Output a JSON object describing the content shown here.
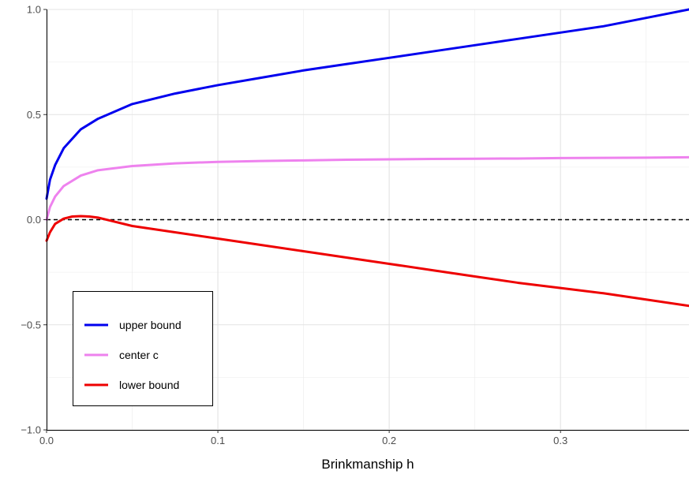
{
  "chart_data": {
    "type": "line",
    "title": "",
    "xlabel": "Brinkmanship h",
    "ylabel": "",
    "xlim": [
      0,
      0.375
    ],
    "ylim": [
      -1.0,
      1.0
    ],
    "x_ticks": [
      0.0,
      0.1,
      0.2,
      0.3
    ],
    "x_tick_labels": [
      "0.0",
      "0.1",
      "0.2",
      "0.3"
    ],
    "y_ticks": [
      -1.0,
      -0.5,
      0.0,
      0.5,
      1.0
    ],
    "y_tick_labels": [
      "−1.0",
      "−0.5",
      "0.0",
      "0.5",
      "1.0"
    ],
    "grid": true,
    "legend_position": "bottom-left",
    "reference_line": {
      "y": 0.0,
      "style": "dashed",
      "color": "#000000"
    },
    "series": [
      {
        "name": "upper bound",
        "color": "#0000ee",
        "x": [
          0.0,
          0.002,
          0.005,
          0.01,
          0.02,
          0.03,
          0.05,
          0.075,
          0.1,
          0.125,
          0.15,
          0.175,
          0.2,
          0.225,
          0.25,
          0.275,
          0.3,
          0.325,
          0.35,
          0.375
        ],
        "y": [
          0.1,
          0.19,
          0.26,
          0.34,
          0.43,
          0.48,
          0.55,
          0.6,
          0.64,
          0.675,
          0.71,
          0.74,
          0.77,
          0.8,
          0.83,
          0.86,
          0.89,
          0.92,
          0.96,
          1.0
        ]
      },
      {
        "name": "center c",
        "color": "#ee82ee",
        "x": [
          0.0,
          0.002,
          0.005,
          0.01,
          0.02,
          0.03,
          0.05,
          0.075,
          0.1,
          0.125,
          0.15,
          0.175,
          0.2,
          0.225,
          0.25,
          0.275,
          0.3,
          0.325,
          0.35,
          0.375
        ],
        "y": [
          0.0,
          0.06,
          0.11,
          0.16,
          0.21,
          0.235,
          0.255,
          0.268,
          0.275,
          0.279,
          0.282,
          0.285,
          0.287,
          0.289,
          0.29,
          0.291,
          0.293,
          0.294,
          0.295,
          0.297
        ]
      },
      {
        "name": "lower bound",
        "color": "#ee0000",
        "x": [
          0.0,
          0.002,
          0.005,
          0.01,
          0.015,
          0.02,
          0.025,
          0.03,
          0.04,
          0.05,
          0.075,
          0.1,
          0.125,
          0.15,
          0.175,
          0.2,
          0.225,
          0.25,
          0.275,
          0.3,
          0.325,
          0.35,
          0.375
        ],
        "y": [
          -0.1,
          -0.06,
          -0.02,
          0.005,
          0.015,
          0.017,
          0.015,
          0.01,
          -0.01,
          -0.03,
          -0.06,
          -0.09,
          -0.12,
          -0.15,
          -0.18,
          -0.21,
          -0.24,
          -0.27,
          -0.3,
          -0.325,
          -0.35,
          -0.38,
          -0.41
        ]
      }
    ]
  }
}
